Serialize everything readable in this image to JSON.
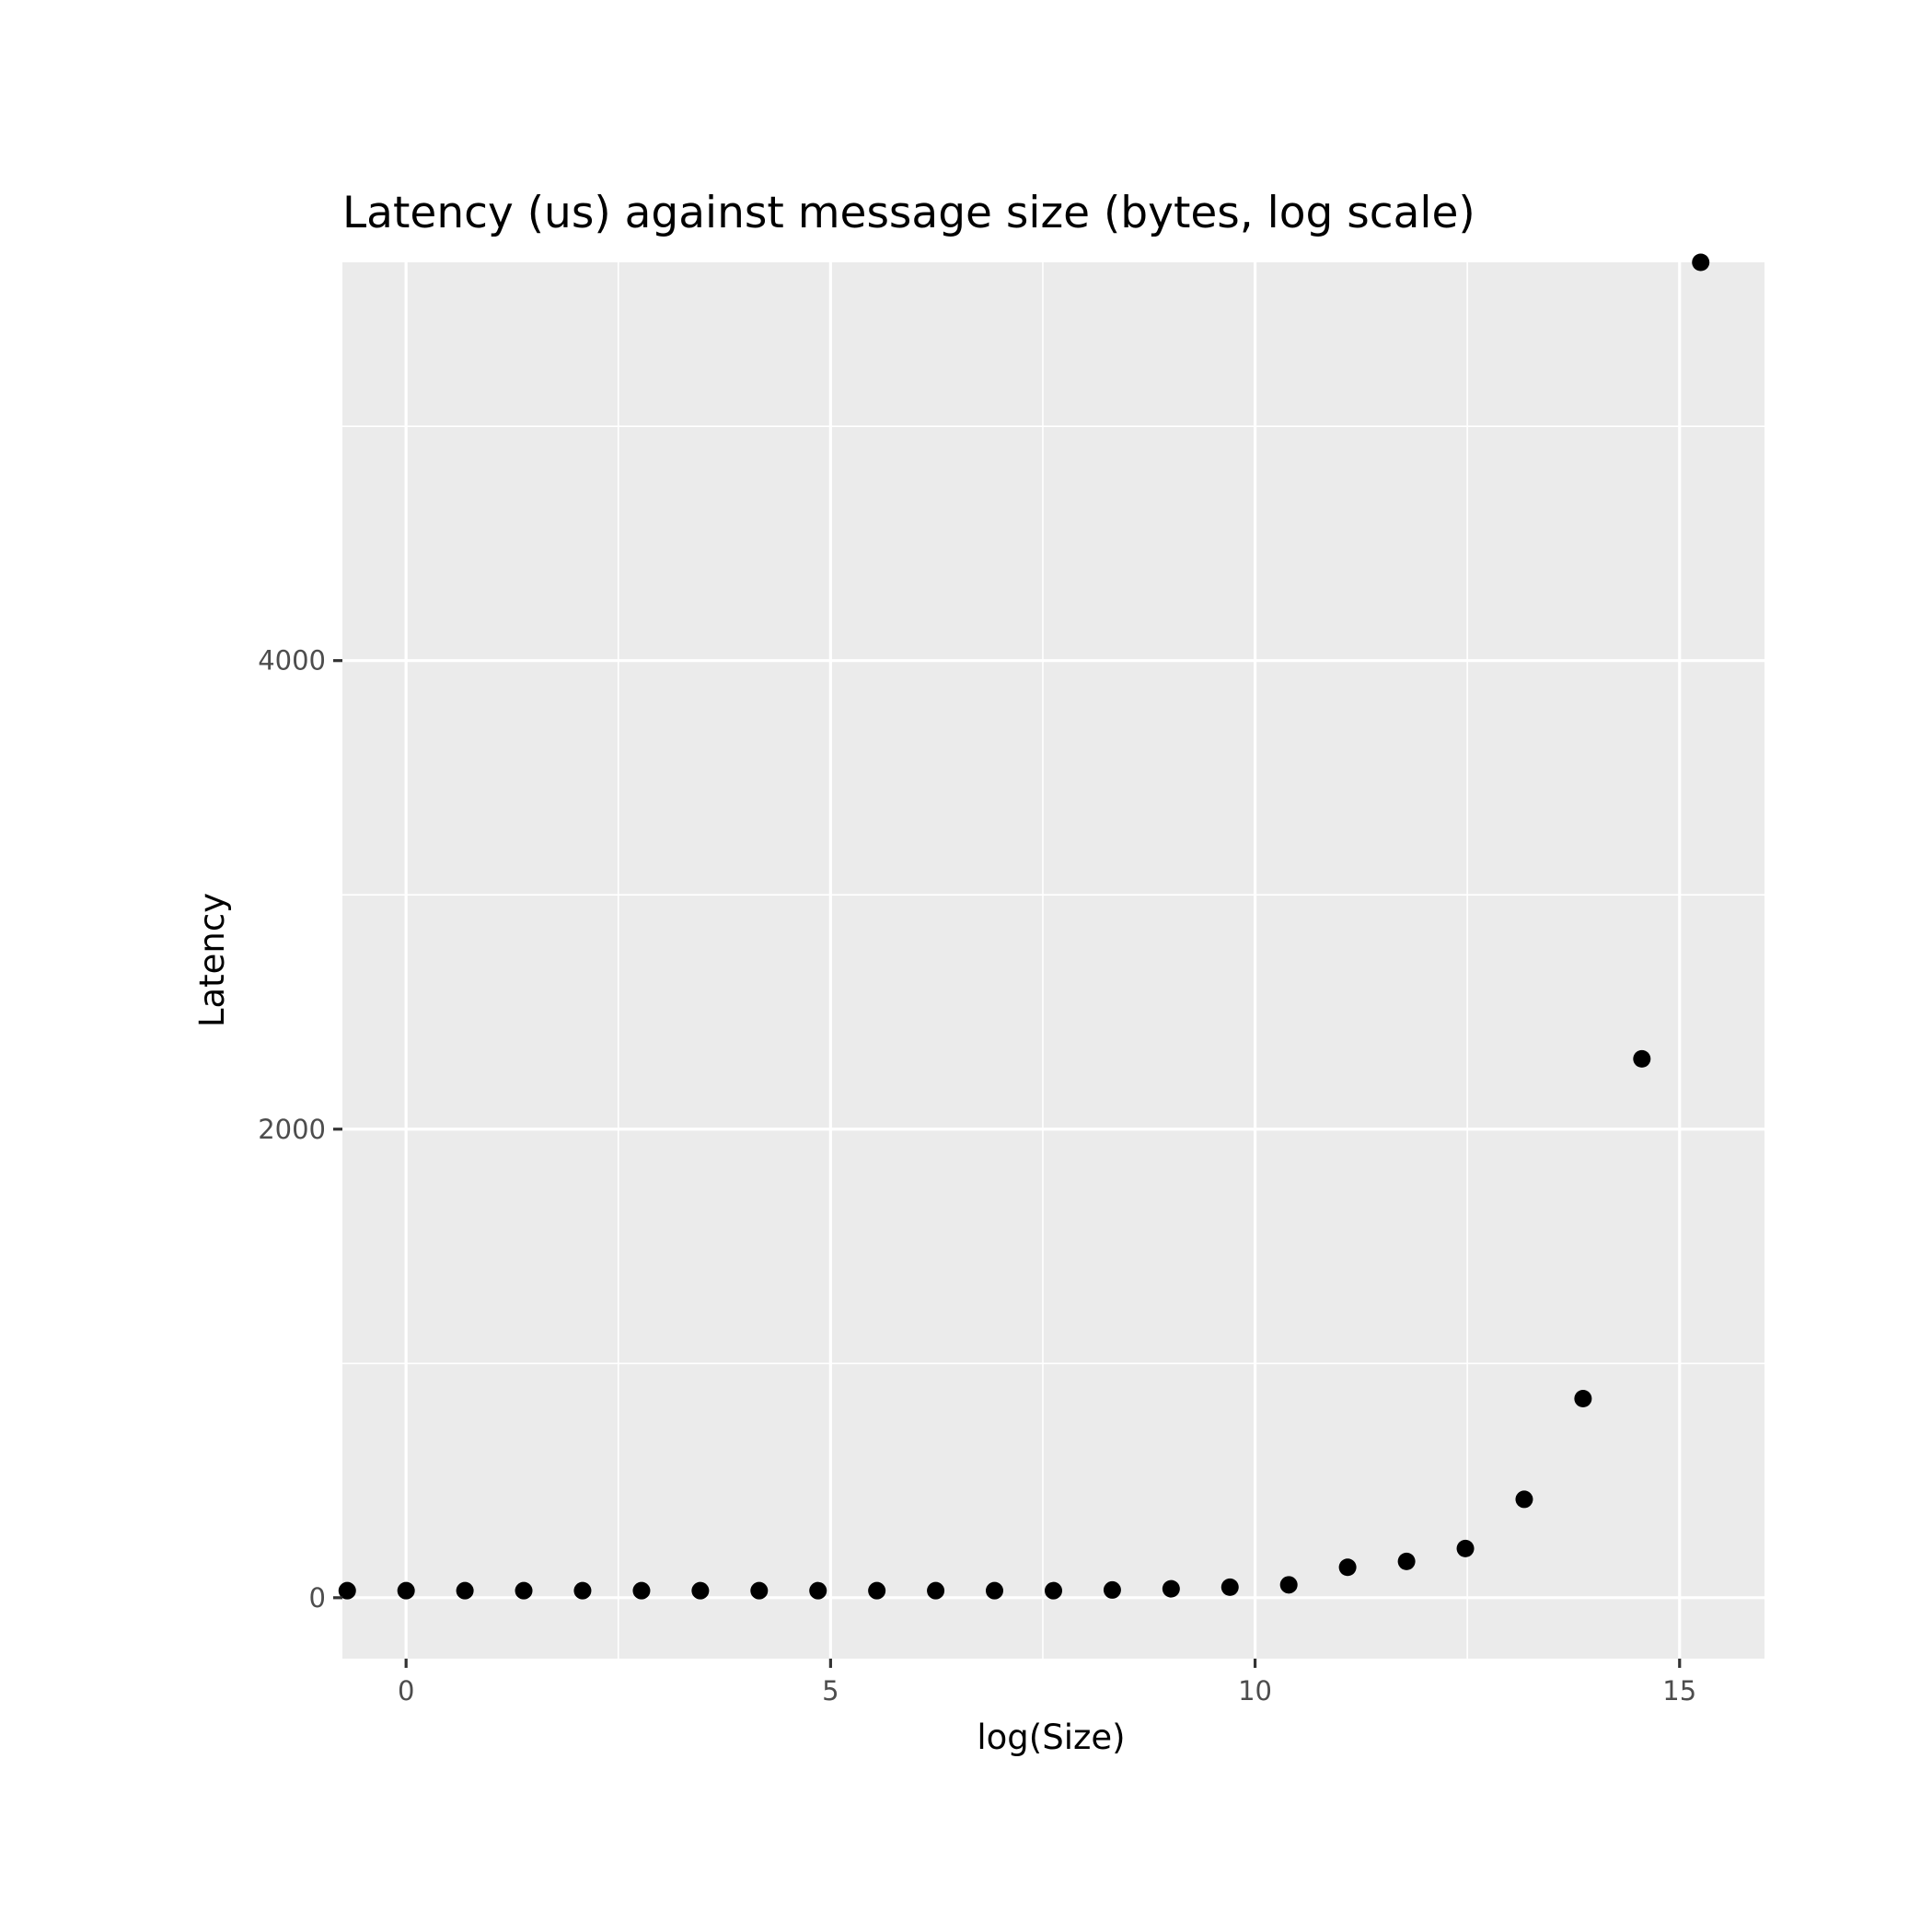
{
  "chart_data": {
    "type": "scatter",
    "title": "Latency (us) against message size (bytes, log scale)",
    "xlabel": "log(Size)",
    "ylabel": "Latency",
    "xlim": [
      -0.75,
      16
    ],
    "ylim": [
      -260,
      5700
    ],
    "x_ticks": [
      0,
      5,
      10,
      15
    ],
    "x_tick_labels": [
      "0",
      "5",
      "10",
      "15"
    ],
    "y_ticks": [
      0,
      2000,
      4000
    ],
    "y_tick_labels": [
      "0",
      "2000",
      "4000"
    ],
    "x_minor_ticks": [
      2.5,
      7.5,
      12.5
    ],
    "y_minor_ticks": [
      1000,
      3000,
      5000
    ],
    "grid": true,
    "background": "#ebebeb",
    "point_color": "#000000",
    "x": [
      -0.693,
      0,
      0.693,
      1.386,
      2.079,
      2.773,
      3.466,
      4.159,
      4.852,
      5.545,
      6.238,
      6.931,
      7.625,
      8.318,
      9.011,
      9.704,
      10.397,
      11.09,
      11.784,
      12.477,
      13.17,
      13.863,
      14.556,
      15.249
    ],
    "y": [
      30,
      30,
      30,
      30,
      30,
      30,
      30,
      30,
      30,
      30,
      30,
      30,
      30,
      33,
      38,
      45,
      55,
      130,
      155,
      210,
      420,
      850,
      2300,
      5700
    ]
  }
}
